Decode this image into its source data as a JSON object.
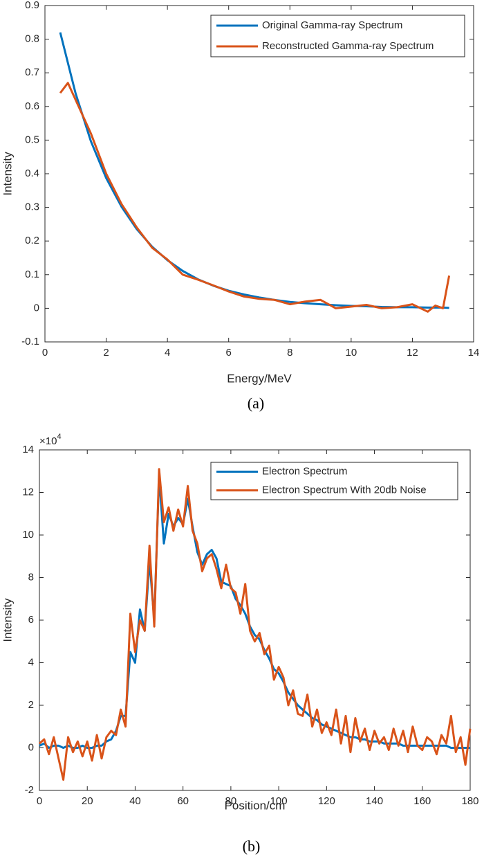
{
  "chart_data": [
    {
      "type": "line",
      "xlabel": "Energy/MeV",
      "ylabel": "Intensity",
      "caption": "(a)",
      "xlim": [
        0,
        14
      ],
      "xticks": [
        0,
        2,
        4,
        6,
        8,
        10,
        12,
        14
      ],
      "ylim": [
        -0.1,
        0.9
      ],
      "yticks": [
        -0.1,
        0,
        0.1,
        0.2,
        0.3,
        0.4,
        0.5,
        0.6,
        0.7,
        0.8,
        0.9
      ],
      "legend": "upper right",
      "series": [
        {
          "name": "Original Gamma-ray Spectrum",
          "color": "#0072bd",
          "x": [
            0.5,
            1,
            1.5,
            2,
            2.5,
            3,
            3.5,
            4,
            4.5,
            5,
            5.5,
            6,
            6.5,
            7,
            7.5,
            8,
            8.5,
            9,
            9.5,
            10,
            10.5,
            11,
            11.5,
            12,
            12.5,
            13,
            13.2
          ],
          "values": [
            0.82,
            0.639,
            0.497,
            0.387,
            0.302,
            0.235,
            0.183,
            0.143,
            0.111,
            0.086,
            0.067,
            0.052,
            0.041,
            0.032,
            0.025,
            0.019,
            0.015,
            0.012,
            0.009,
            0.007,
            0.006,
            0.004,
            0.003,
            0.003,
            0.002,
            0.002,
            0.001
          ]
        },
        {
          "name": "Reconstructed Gamma-ray Spectrum",
          "color": "#d95319",
          "x": [
            0.5,
            0.75,
            1,
            1.5,
            2,
            2.5,
            3,
            3.5,
            4,
            4.5,
            5,
            5.5,
            6,
            6.5,
            7,
            7.5,
            8,
            8.5,
            9,
            9.5,
            10,
            10.5,
            11,
            11.5,
            12,
            12.5,
            12.75,
            13,
            13.2
          ],
          "values": [
            0.64,
            0.67,
            0.62,
            0.52,
            0.4,
            0.31,
            0.24,
            0.18,
            0.145,
            0.1,
            0.085,
            0.068,
            0.05,
            0.035,
            0.028,
            0.025,
            0.012,
            0.02,
            0.025,
            0.0,
            0.005,
            0.01,
            0.0,
            0.003,
            0.012,
            -0.01,
            0.008,
            0.0,
            0.097
          ]
        }
      ]
    },
    {
      "type": "line",
      "xlabel": "Position/cm",
      "ylabel": "Intensity",
      "caption": "(b)",
      "y_multiplier": "×10",
      "y_multiplier_exponent": "4",
      "xlim": [
        0,
        180
      ],
      "xticks": [
        0,
        20,
        40,
        60,
        80,
        100,
        120,
        140,
        160,
        180
      ],
      "ylim": [
        -2,
        14
      ],
      "yticks": [
        -2,
        0,
        2,
        4,
        6,
        8,
        10,
        12,
        14
      ],
      "legend": "upper right",
      "series": [
        {
          "name": "Electron Spectrum",
          "color": "#0072bd",
          "x": [
            0,
            2,
            4,
            6,
            8,
            10,
            12,
            14,
            16,
            18,
            20,
            22,
            24,
            26,
            28,
            30,
            32,
            34,
            36,
            38,
            40,
            42,
            44,
            46,
            48,
            50,
            52,
            54,
            56,
            58,
            60,
            62,
            64,
            66,
            68,
            70,
            72,
            74,
            76,
            78,
            80,
            82,
            84,
            86,
            88,
            90,
            92,
            94,
            96,
            98,
            100,
            102,
            104,
            106,
            108,
            110,
            112,
            114,
            116,
            118,
            120,
            122,
            124,
            126,
            128,
            130,
            132,
            134,
            136,
            138,
            140,
            142,
            144,
            146,
            148,
            150,
            152,
            154,
            156,
            158,
            160,
            162,
            164,
            166,
            168,
            170,
            172,
            174,
            176,
            178,
            180
          ],
          "values": [
            0.1,
            0.2,
            0,
            0.1,
            0.1,
            0,
            0.1,
            0,
            0,
            0.1,
            0,
            0,
            0.1,
            0.1,
            0.3,
            0.4,
            0.8,
            1.5,
            1.5,
            4.5,
            4,
            6.5,
            5.5,
            8.8,
            6,
            12.8,
            9.6,
            11,
            10.4,
            10.8,
            10.5,
            11.7,
            10.4,
            9.2,
            8.6,
            9.1,
            9.3,
            8.9,
            7.8,
            7.7,
            7.6,
            7.0,
            6.7,
            6.3,
            5.7,
            5.3,
            5.1,
            4.6,
            4.2,
            3.7,
            3.5,
            3.1,
            2.6,
            2.3,
            2.0,
            1.8,
            1.6,
            1.4,
            1.3,
            1.1,
            1.0,
            0.9,
            0.8,
            0.7,
            0.6,
            0.5,
            0.5,
            0.4,
            0.4,
            0.3,
            0.3,
            0.3,
            0.2,
            0.2,
            0.2,
            0.2,
            0.1,
            0.1,
            0.1,
            0.1,
            0.1,
            0.1,
            0.1,
            0.1,
            0.1,
            0.1,
            0,
            0,
            0,
            0,
            0
          ]
        },
        {
          "name": "Electron Spectrum With 20db Noise",
          "color": "#d95319",
          "x": [
            0,
            2,
            4,
            6,
            8,
            10,
            12,
            14,
            16,
            18,
            20,
            22,
            24,
            26,
            28,
            30,
            32,
            34,
            36,
            38,
            40,
            42,
            44,
            46,
            48,
            50,
            52,
            54,
            56,
            58,
            60,
            62,
            64,
            66,
            68,
            70,
            72,
            74,
            76,
            78,
            80,
            82,
            84,
            86,
            88,
            90,
            92,
            94,
            96,
            98,
            100,
            102,
            104,
            106,
            108,
            110,
            112,
            114,
            116,
            118,
            120,
            122,
            124,
            126,
            128,
            130,
            132,
            134,
            136,
            138,
            140,
            142,
            144,
            146,
            148,
            150,
            152,
            154,
            156,
            158,
            160,
            162,
            164,
            166,
            168,
            170,
            172,
            174,
            176,
            178,
            180
          ],
          "values": [
            0.2,
            0.4,
            -0.3,
            0.5,
            -0.5,
            -1.5,
            0.5,
            -0.2,
            0.3,
            -0.4,
            0.3,
            -0.6,
            0.6,
            -0.5,
            0.5,
            0.8,
            0.6,
            1.8,
            1.0,
            6.3,
            4.5,
            6.0,
            5.5,
            9.5,
            5.7,
            13.1,
            10.6,
            11.3,
            10.2,
            11.2,
            10.4,
            12.3,
            10.2,
            9.6,
            8.3,
            8.9,
            9.1,
            8.4,
            7.5,
            8.6,
            7.5,
            7.3,
            6.3,
            7.7,
            5.5,
            5.0,
            5.4,
            4.4,
            4.8,
            3.2,
            3.8,
            3.3,
            2.0,
            2.7,
            1.6,
            1.5,
            2.5,
            1.0,
            1.8,
            0.7,
            1.2,
            0.6,
            1.8,
            0.2,
            1.5,
            -0.2,
            1.4,
            0.3,
            0.9,
            -0.1,
            0.8,
            0.2,
            0.5,
            -0.1,
            0.9,
            0.1,
            0.8,
            -0.2,
            1.0,
            0.1,
            -0.1,
            0.5,
            0.3,
            -0.3,
            0.6,
            0.2,
            1.5,
            -0.2,
            0.5,
            -0.8,
            0.9
          ]
        }
      ]
    }
  ]
}
